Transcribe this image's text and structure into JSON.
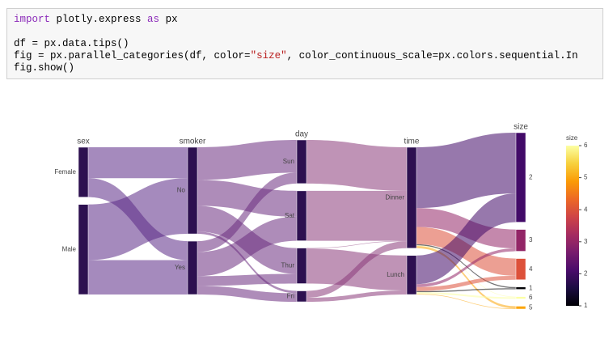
{
  "code": {
    "lines": [
      [
        {
          "text": "import",
          "color": "#8b2bb9"
        },
        {
          "text": " plotly.express ",
          "color": "#000000"
        },
        {
          "text": "as",
          "color": "#8b2bb9"
        },
        {
          "text": " px",
          "color": "#000000"
        }
      ],
      [],
      [
        {
          "text": "df = px.data.tips()",
          "color": "#000000"
        }
      ],
      [
        {
          "text": "fig = px.parallel_categories(df, color=",
          "color": "#000000"
        },
        {
          "text": "\"size\"",
          "color": "#ba2121"
        },
        {
          "text": ", color_continuous_scale=px.colors.sequential.In",
          "color": "#000000"
        }
      ],
      [
        {
          "text": "fig.show()",
          "color": "#000000"
        }
      ]
    ]
  },
  "chart_data": {
    "type": "parcats",
    "dimensions": [
      {
        "label": "sex",
        "color": "#2d1050",
        "categories": [
          {
            "label": "Female",
            "count": 87
          },
          {
            "label": "Male",
            "count": 157
          }
        ]
      },
      {
        "label": "smoker",
        "color": "#2d1050",
        "categories": [
          {
            "label": "No",
            "count": 151
          },
          {
            "label": "Yes",
            "count": 93
          }
        ]
      },
      {
        "label": "day",
        "color": "#2d1050",
        "categories": [
          {
            "label": "Sun",
            "count": 76
          },
          {
            "label": "Sat",
            "count": 87
          },
          {
            "label": "Thur",
            "count": 62
          },
          {
            "label": "Fri",
            "count": 19
          }
        ]
      },
      {
        "label": "time",
        "color": "#2d1050",
        "categories": [
          {
            "label": "Dinner",
            "count": 176
          },
          {
            "label": "Lunch",
            "count": 68
          }
        ]
      },
      {
        "label": "size",
        "color": "#2d1050",
        "categories": [
          {
            "label": "2",
            "count": 156,
            "color": "#420a68"
          },
          {
            "label": "3",
            "count": 38,
            "color": "#932667"
          },
          {
            "label": "4",
            "count": 37,
            "color": "#dd513a"
          },
          {
            "label": "1",
            "count": 4,
            "color": "#000004"
          },
          {
            "label": "6",
            "count": 4,
            "color": "#fcffa4"
          },
          {
            "label": "5",
            "count": 5,
            "color": "#fca50a"
          }
        ]
      }
    ],
    "flows": [
      {
        "dims": [
          0,
          1
        ],
        "color": "#5b2a86",
        "links": [
          {
            "source": 0,
            "target": 0,
            "value": 54
          },
          {
            "source": 0,
            "target": 1,
            "value": 33
          },
          {
            "source": 1,
            "target": 0,
            "value": 97
          },
          {
            "source": 1,
            "target": 1,
            "value": 60
          }
        ]
      },
      {
        "dims": [
          1,
          2
        ],
        "color": "#6b2d7f",
        "links": [
          {
            "source": 0,
            "target": 0,
            "value": 57
          },
          {
            "source": 0,
            "target": 1,
            "value": 45
          },
          {
            "source": 0,
            "target": 2,
            "value": 45
          },
          {
            "source": 0,
            "target": 3,
            "value": 4
          },
          {
            "source": 1,
            "target": 0,
            "value": 19
          },
          {
            "source": 1,
            "target": 1,
            "value": 42
          },
          {
            "source": 1,
            "target": 2,
            "value": 17
          },
          {
            "source": 1,
            "target": 3,
            "value": 15
          }
        ]
      },
      {
        "dims": [
          2,
          3
        ],
        "color": "#8a3a7a",
        "links": [
          {
            "source": 0,
            "target": 0,
            "value": 76
          },
          {
            "source": 1,
            "target": 0,
            "value": 87
          },
          {
            "source": 2,
            "target": 0,
            "value": 1
          },
          {
            "source": 2,
            "target": 1,
            "value": 61
          },
          {
            "source": 3,
            "target": 0,
            "value": 12
          },
          {
            "source": 3,
            "target": 1,
            "value": 7
          }
        ]
      },
      {
        "dims": [
          3,
          4
        ],
        "color": "#6b2d7f",
        "links": [
          {
            "source": 0,
            "target": 0,
            "value": 106,
            "color": "#420a68"
          },
          {
            "source": 0,
            "target": 1,
            "value": 33,
            "color": "#932667"
          },
          {
            "source": 0,
            "target": 2,
            "value": 30,
            "color": "#dd513a"
          },
          {
            "source": 0,
            "target": 3,
            "value": 2,
            "color": "#000004"
          },
          {
            "source": 0,
            "target": 4,
            "value": 1,
            "color": "#fcffa4"
          },
          {
            "source": 0,
            "target": 5,
            "value": 4,
            "color": "#fca50a"
          },
          {
            "source": 1,
            "target": 0,
            "value": 50,
            "color": "#420a68"
          },
          {
            "source": 1,
            "target": 1,
            "value": 5,
            "color": "#932667"
          },
          {
            "source": 1,
            "target": 2,
            "value": 7,
            "color": "#dd513a"
          },
          {
            "source": 1,
            "target": 3,
            "value": 2,
            "color": "#000004"
          },
          {
            "source": 1,
            "target": 4,
            "value": 3,
            "color": "#fcffa4"
          },
          {
            "source": 1,
            "target": 5,
            "value": 1,
            "color": "#fca50a"
          }
        ]
      }
    ],
    "colorbar": {
      "title": "size",
      "range": [
        1,
        6
      ],
      "ticks": [
        1,
        2,
        3,
        4,
        5,
        6
      ],
      "colorscale": [
        "#000004",
        "#1b0c41",
        "#4a0c6b",
        "#781c6d",
        "#a52c60",
        "#cf4446",
        "#ed6925",
        "#fb9b06",
        "#f7d13d",
        "#fcffa4"
      ]
    }
  }
}
